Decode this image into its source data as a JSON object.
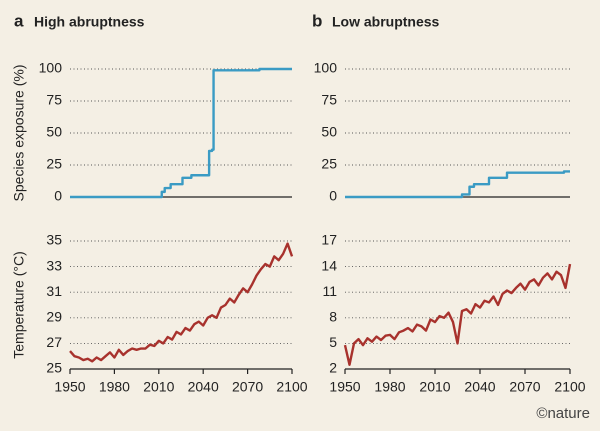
{
  "chart_data": [
    {
      "type": "line",
      "panel": "a",
      "title": "High abruptness",
      "ylabel": "Species exposure (%)",
      "x": [
        1950,
        2012,
        2012,
        2014,
        2014,
        2018,
        2018,
        2026,
        2026,
        2032,
        2032,
        2044,
        2044,
        2046,
        2046,
        2047,
        2047,
        2078,
        2078,
        2100
      ],
      "values": [
        0,
        0,
        4,
        4,
        7,
        7,
        10,
        10,
        15,
        15,
        17,
        17,
        36,
        36,
        37,
        37,
        99,
        99,
        100,
        100
      ],
      "color": "#3a9bc4",
      "xlim": [
        1950,
        2100
      ],
      "ylim": [
        0,
        100
      ],
      "yticks": [
        0,
        25,
        50,
        75,
        100
      ],
      "grid": true
    },
    {
      "type": "line",
      "panel": "b",
      "title": "Low abruptness",
      "x": [
        1950,
        2028,
        2028,
        2033,
        2033,
        2036,
        2036,
        2046,
        2046,
        2058,
        2058,
        2096,
        2096,
        2100
      ],
      "values": [
        0,
        0,
        2,
        2,
        8,
        8,
        10,
        10,
        15,
        15,
        19,
        19,
        20,
        20
      ],
      "color": "#3a9bc4",
      "xlim": [
        1950,
        2100
      ],
      "ylim": [
        0,
        100
      ],
      "yticks": [
        0,
        25,
        50,
        75,
        100
      ],
      "grid": true
    },
    {
      "type": "line",
      "ylabel": "Temperature (°C)",
      "x": [
        1950,
        1953,
        1956,
        1959,
        1962,
        1965,
        1968,
        1971,
        1974,
        1977,
        1980,
        1983,
        1986,
        1989,
        1992,
        1995,
        1998,
        2001,
        2004,
        2007,
        2010,
        2013,
        2016,
        2019,
        2022,
        2025,
        2028,
        2031,
        2034,
        2037,
        2040,
        2043,
        2046,
        2049,
        2052,
        2055,
        2058,
        2061,
        2064,
        2067,
        2070,
        2073,
        2076,
        2079,
        2082,
        2085,
        2088,
        2091,
        2094,
        2097,
        2100
      ],
      "values": [
        26.4,
        26.0,
        25.9,
        25.7,
        25.8,
        25.6,
        25.9,
        25.7,
        26.0,
        26.3,
        25.9,
        26.5,
        26.1,
        26.4,
        26.6,
        26.5,
        26.6,
        26.6,
        26.9,
        26.8,
        27.2,
        27.0,
        27.5,
        27.3,
        27.9,
        27.7,
        28.2,
        28.0,
        28.5,
        28.7,
        28.4,
        29.0,
        29.2,
        29.0,
        29.8,
        30.0,
        30.5,
        30.2,
        30.8,
        31.3,
        31.0,
        31.6,
        32.3,
        32.8,
        33.2,
        33.0,
        33.8,
        33.5,
        34.0,
        34.8,
        33.8
      ],
      "color": "#a8322d",
      "xlim": [
        1950,
        2100
      ],
      "ylim": [
        25,
        35
      ],
      "yticks": [
        25,
        27,
        29,
        31,
        33,
        35
      ],
      "xticks": [
        1950,
        1980,
        2010,
        2040,
        2070,
        2100
      ],
      "grid": true
    },
    {
      "type": "line",
      "x": [
        1950,
        1953,
        1956,
        1959,
        1962,
        1965,
        1968,
        1971,
        1974,
        1977,
        1980,
        1983,
        1986,
        1989,
        1992,
        1995,
        1998,
        2001,
        2004,
        2007,
        2010,
        2013,
        2016,
        2019,
        2022,
        2025,
        2028,
        2031,
        2034,
        2037,
        2040,
        2043,
        2046,
        2049,
        2052,
        2055,
        2058,
        2061,
        2064,
        2067,
        2070,
        2073,
        2076,
        2079,
        2082,
        2085,
        2088,
        2091,
        2094,
        2097,
        2100
      ],
      "values": [
        4.8,
        2.5,
        5.0,
        5.5,
        4.8,
        5.6,
        5.2,
        5.8,
        5.4,
        5.9,
        6.0,
        5.5,
        6.3,
        6.5,
        6.8,
        6.4,
        7.2,
        7.0,
        6.5,
        7.8,
        7.5,
        8.2,
        8.0,
        8.6,
        7.5,
        5.0,
        8.8,
        9.0,
        8.5,
        9.6,
        9.2,
        10.0,
        9.8,
        10.5,
        9.5,
        10.8,
        11.2,
        10.9,
        11.5,
        12.0,
        11.3,
        12.2,
        12.5,
        11.8,
        12.7,
        13.2,
        12.5,
        13.4,
        13.0,
        11.5,
        14.3
      ],
      "color": "#a8322d",
      "xlim": [
        1950,
        2100
      ],
      "ylim": [
        2,
        17
      ],
      "yticks": [
        2,
        5,
        8,
        11,
        14,
        17
      ],
      "xticks": [
        1950,
        1980,
        2010,
        2040,
        2070,
        2100
      ],
      "grid": true
    }
  ],
  "credit": "©nature"
}
